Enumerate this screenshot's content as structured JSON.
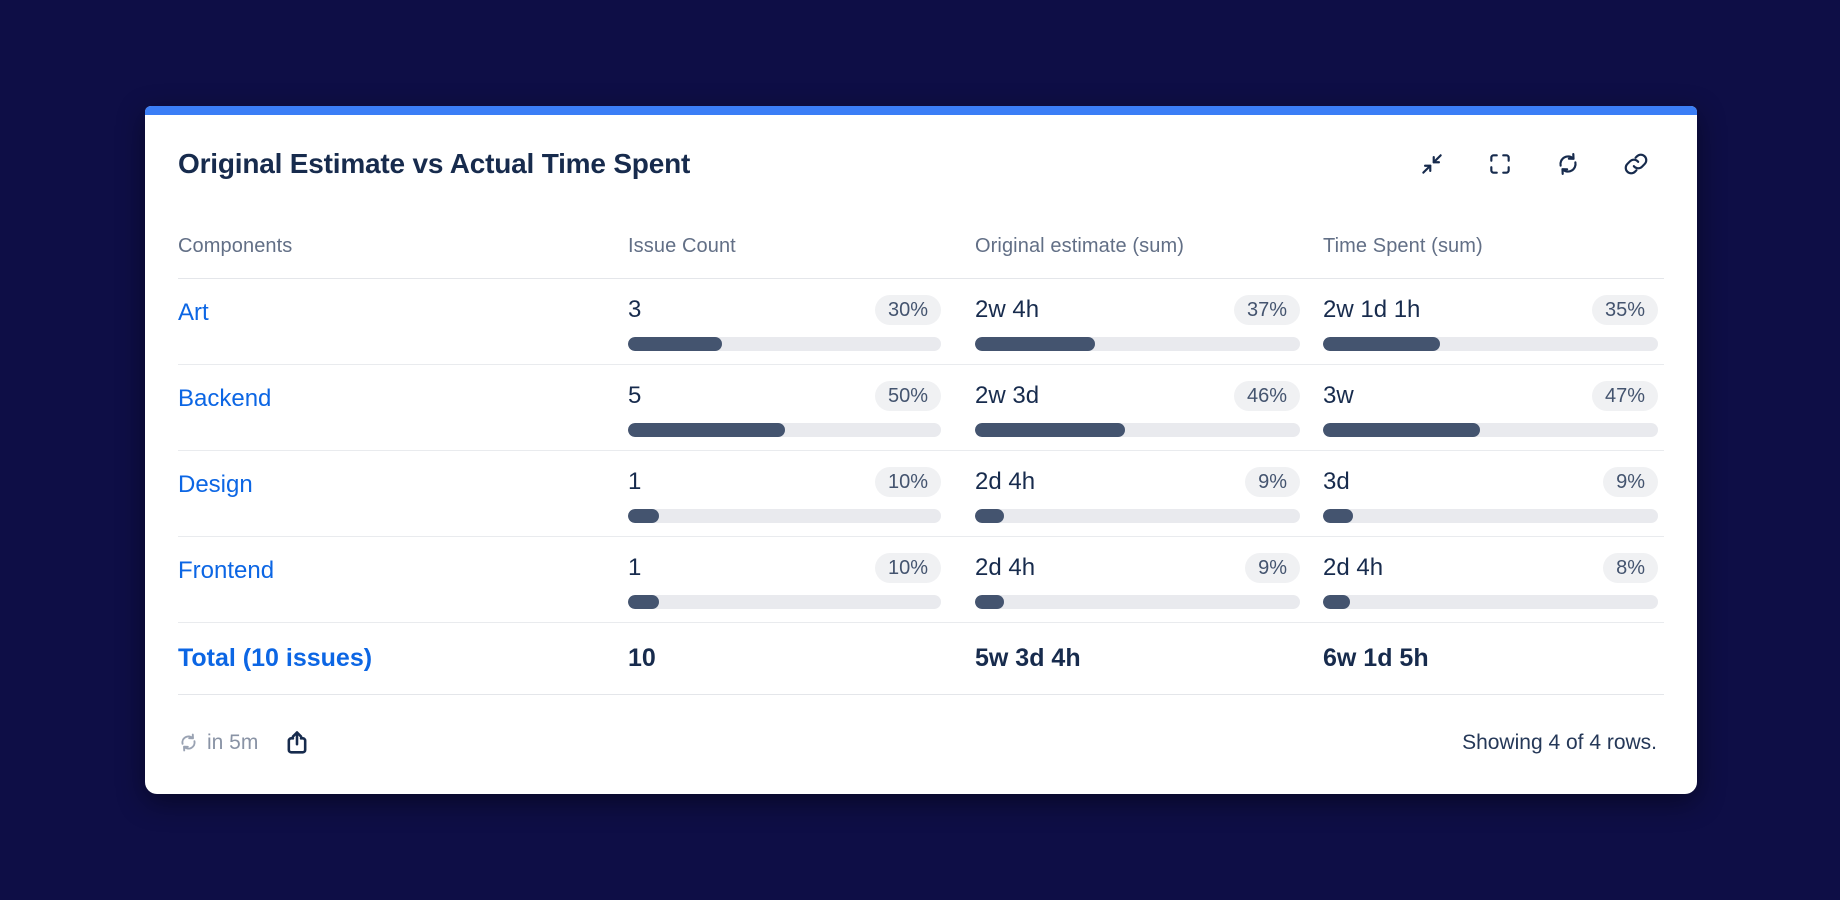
{
  "colors": {
    "background": "#0e0e46",
    "accent": "#3b7ef6",
    "link": "#0c66e4",
    "bar_fill": "#44546F",
    "bar_track": "#e9eaee",
    "title_text": "#172B4D",
    "header_text": "#626F86"
  },
  "card": {
    "title": "Original Estimate vs Actual Time Spent"
  },
  "toolbar": {
    "icons": [
      "minimize-icon",
      "fullscreen-icon",
      "refresh-icon",
      "link-icon"
    ]
  },
  "table": {
    "columns": [
      "Components",
      "Issue Count",
      "Original estimate (sum)",
      "Time Spent (sum)"
    ],
    "rows": [
      {
        "component": "Art",
        "issues": {
          "value": "3",
          "pct": 30,
          "pct_label": "30%"
        },
        "estimate": {
          "value": "2w 4h",
          "pct": 37,
          "pct_label": "37%"
        },
        "spent": {
          "value": "2w 1d 1h",
          "pct": 35,
          "pct_label": "35%"
        }
      },
      {
        "component": "Backend",
        "issues": {
          "value": "5",
          "pct": 50,
          "pct_label": "50%"
        },
        "estimate": {
          "value": "2w 3d",
          "pct": 46,
          "pct_label": "46%"
        },
        "spent": {
          "value": "3w",
          "pct": 47,
          "pct_label": "47%"
        }
      },
      {
        "component": "Design",
        "issues": {
          "value": "1",
          "pct": 10,
          "pct_label": "10%"
        },
        "estimate": {
          "value": "2d 4h",
          "pct": 9,
          "pct_label": "9%"
        },
        "spent": {
          "value": "3d",
          "pct": 9,
          "pct_label": "9%"
        }
      },
      {
        "component": "Frontend",
        "issues": {
          "value": "1",
          "pct": 10,
          "pct_label": "10%"
        },
        "estimate": {
          "value": "2d 4h",
          "pct": 9,
          "pct_label": "9%"
        },
        "spent": {
          "value": "2d 4h",
          "pct": 8,
          "pct_label": "8%"
        }
      }
    ],
    "totals": {
      "label": "Total (10 issues)",
      "issues": "10",
      "estimate": "5w 3d 4h",
      "spent": "6w 1d 5h"
    }
  },
  "footer": {
    "refresh_text": "in 5m",
    "rows_summary": "Showing 4 of 4 rows."
  }
}
